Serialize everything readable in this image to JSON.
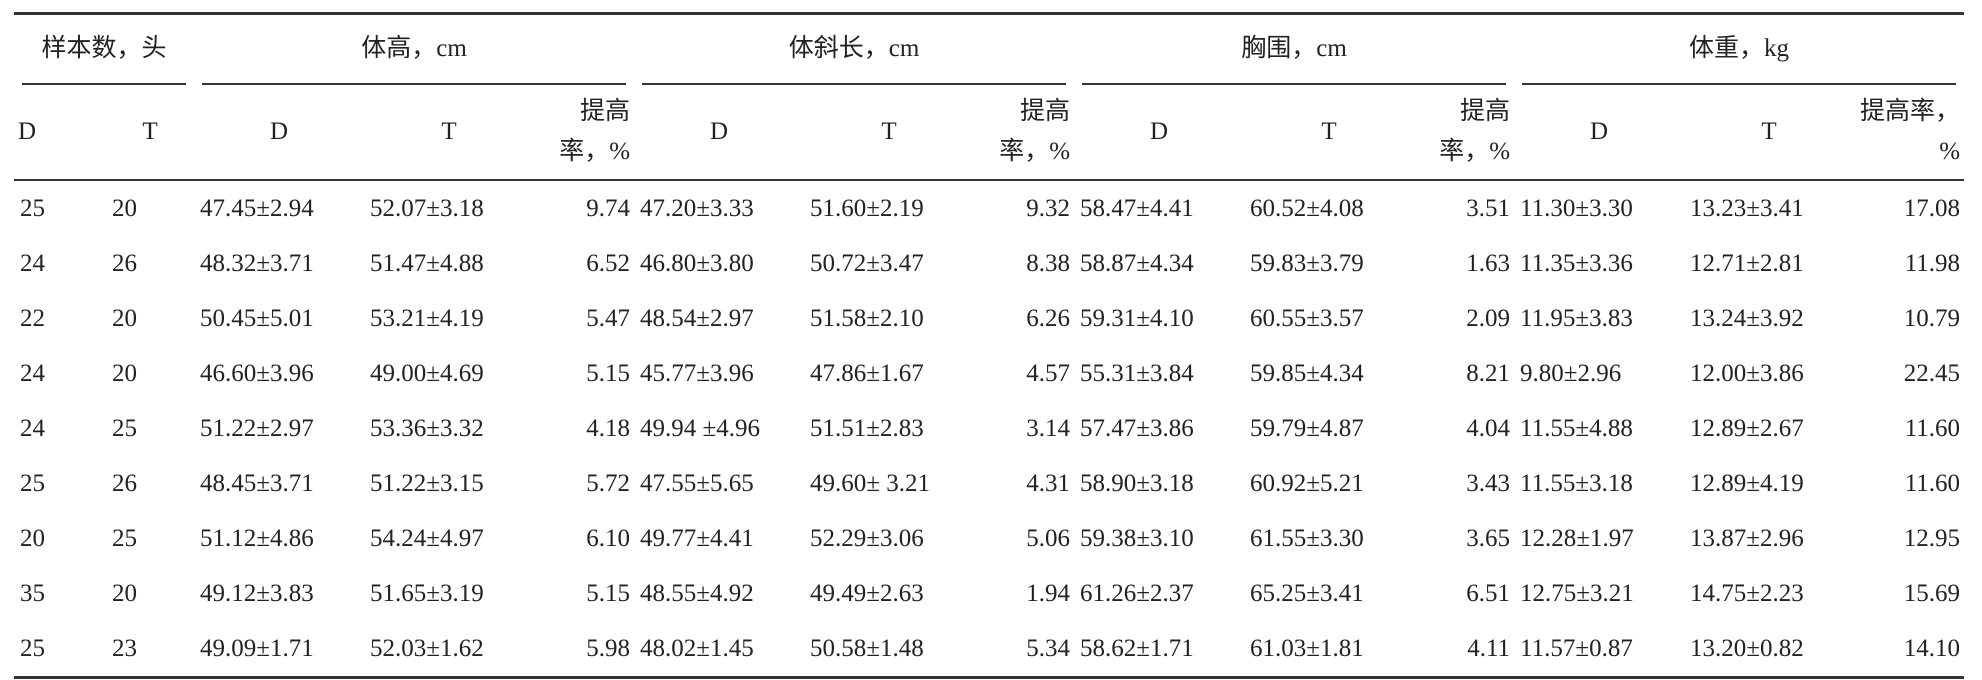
{
  "header": {
    "groups": [
      "样本数，头",
      "体高，cm",
      "体斜长，cm",
      "胸围，cm",
      "体重，kg"
    ],
    "subheaders": [
      "D",
      "T",
      "D",
      "T",
      "提高率，%",
      "D",
      "T",
      "提高率，%",
      "D",
      "T",
      "提高率，%",
      "D",
      "T",
      "提高率，%"
    ]
  },
  "table": {
    "rows": [
      [
        "25",
        "20",
        "47.45±2.94",
        "52.07±3.18",
        "9.74",
        "47.20±3.33",
        "51.60±2.19",
        "9.32",
        "58.47±4.41",
        "60.52±4.08",
        "3.51",
        "11.30±3.30",
        "13.23±3.41",
        "17.08"
      ],
      [
        "24",
        "26",
        "48.32±3.71",
        "51.47±4.88",
        "6.52",
        "46.80±3.80",
        "50.72±3.47",
        "8.38",
        "58.87±4.34",
        "59.83±3.79",
        "1.63",
        "11.35±3.36",
        "12.71±2.81",
        "11.98"
      ],
      [
        "22",
        "20",
        "50.45±5.01",
        "53.21±4.19",
        "5.47",
        "48.54±2.97",
        "51.58±2.10",
        "6.26",
        "59.31±4.10",
        "60.55±3.57",
        "2.09",
        "11.95±3.83",
        "13.24±3.92",
        "10.79"
      ],
      [
        "24",
        "20",
        "46.60±3.96",
        "49.00±4.69",
        "5.15",
        "45.77±3.96",
        "47.86±1.67",
        "4.57",
        "55.31±3.84",
        "59.85±4.34",
        "8.21",
        "9.80±2.96",
        "12.00±3.86",
        "22.45"
      ],
      [
        "24",
        "25",
        "51.22±2.97",
        "53.36±3.32",
        "4.18",
        "49.94 ±4.96",
        "51.51±2.83",
        "3.14",
        "57.47±3.86",
        "59.79±4.87",
        "4.04",
        "11.55±4.88",
        "12.89±2.67",
        "11.60"
      ],
      [
        "25",
        "26",
        "48.45±3.71",
        "51.22±3.15",
        "5.72",
        "47.55±5.65",
        "49.60± 3.21",
        "4.31",
        "58.90±3.18",
        "60.92±5.21",
        "3.43",
        "11.55±3.18",
        "12.89±4.19",
        "11.60"
      ],
      [
        "20",
        "25",
        "51.12±4.86",
        "54.24±4.97",
        "6.10",
        "49.77±4.41",
        "52.29±3.06",
        "5.06",
        "59.38±3.10",
        "61.55±3.30",
        "3.65",
        "12.28±1.97",
        "13.87±2.96",
        "12.95"
      ],
      [
        "35",
        "20",
        "49.12±3.83",
        "51.65±3.19",
        "5.15",
        "48.55±4.92",
        "49.49±2.63",
        "1.94",
        "61.26±2.37",
        "65.25±3.41",
        "6.51",
        "12.75±3.21",
        "14.75±2.23",
        "15.69"
      ],
      [
        "25",
        "23",
        "49.09±1.71",
        "52.03±1.62",
        "5.98",
        "48.02±1.45",
        "50.58±1.48",
        "5.34",
        "58.62±1.71",
        "61.03±1.81",
        "4.11",
        "11.57±0.87",
        "13.20±0.82",
        "14.10"
      ]
    ]
  }
}
